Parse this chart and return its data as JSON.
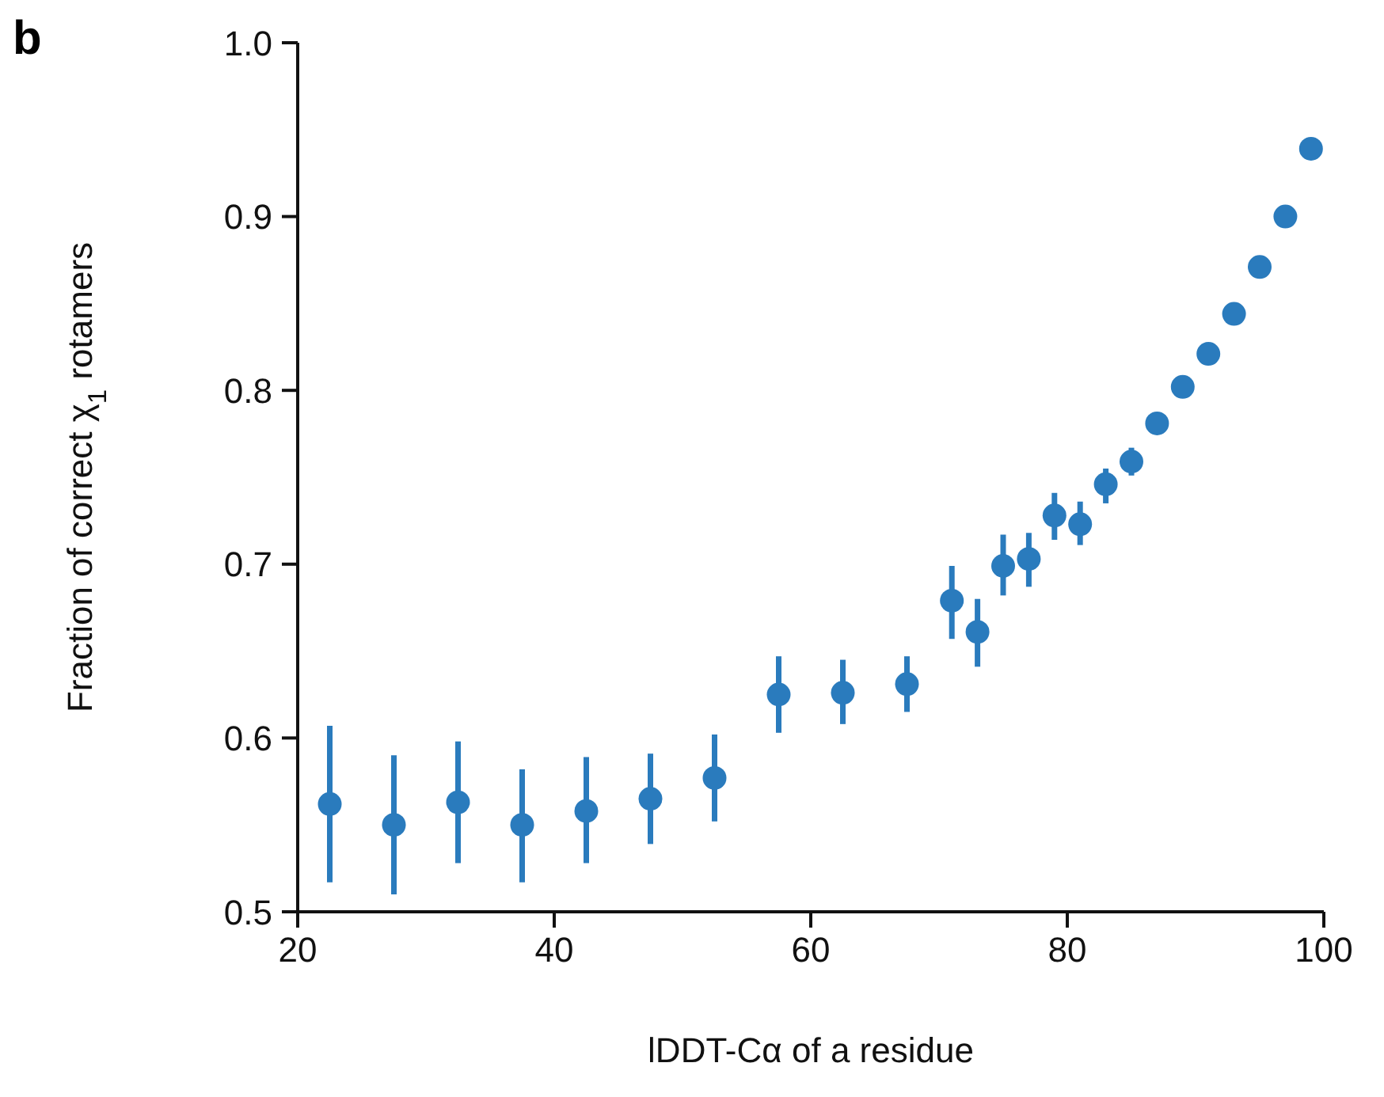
{
  "chart_data": {
    "type": "scatter",
    "xlabel": "lDDT-Cα of a residue",
    "ylabel": "Fraction of correct χ$_{1}$ rotamers",
    "annotations": [
      "b"
    ],
    "x": [
      22.5,
      27.5,
      32.5,
      37.5,
      42.5,
      47.5,
      52.5,
      57.5,
      62.5,
      67.5,
      71,
      73,
      75,
      77,
      79,
      81,
      83,
      85,
      87,
      89,
      91,
      93,
      95,
      97,
      99
    ],
    "series": [
      {
        "color": "#2a7bbd",
        "values": [
          0.562,
          0.55,
          0.563,
          0.55,
          0.558,
          0.565,
          0.577,
          0.625,
          0.626,
          0.631,
          0.679,
          0.661,
          0.699,
          0.703,
          0.728,
          0.723,
          0.746,
          0.759,
          0.781,
          0.802,
          0.821,
          0.844,
          0.871,
          0.9,
          0.939
        ],
        "errors": [
          [
            0.517,
            0.607
          ],
          [
            0.51,
            0.59
          ],
          [
            0.528,
            0.598
          ],
          [
            0.517,
            0.582
          ],
          [
            0.528,
            0.589
          ],
          [
            0.539,
            0.591
          ],
          [
            0.552,
            0.602
          ],
          [
            0.603,
            0.647
          ],
          [
            0.608,
            0.645
          ],
          [
            0.615,
            0.647
          ],
          [
            0.657,
            0.699
          ],
          [
            0.641,
            0.68
          ],
          [
            0.682,
            0.717
          ],
          [
            0.687,
            0.718
          ],
          [
            0.714,
            0.741
          ],
          [
            0.711,
            0.736
          ],
          [
            0.735,
            0.755
          ],
          [
            0.751,
            0.767
          ],
          [
            0.776,
            0.786
          ],
          [
            0.798,
            0.806
          ],
          null,
          null,
          null,
          null,
          null
        ]
      }
    ],
    "marker": "circle",
    "xlim": [
      20,
      100
    ],
    "xticks": [
      20,
      40,
      60,
      80,
      100
    ],
    "ylim": [
      0.5,
      1.0
    ],
    "yticks": [
      {
        "value": 0.5,
        "label": "0.5"
      },
      {
        "value": 0.6,
        "label": "0.6"
      },
      {
        "value": 0.7,
        "label": "0.7"
      },
      {
        "value": 0.8,
        "label": "0.8"
      },
      {
        "value": 0.9,
        "label": "0.9"
      },
      {
        "value": 1.0,
        "label": "1.0"
      }
    ],
    "grid": false,
    "legend": false
  }
}
